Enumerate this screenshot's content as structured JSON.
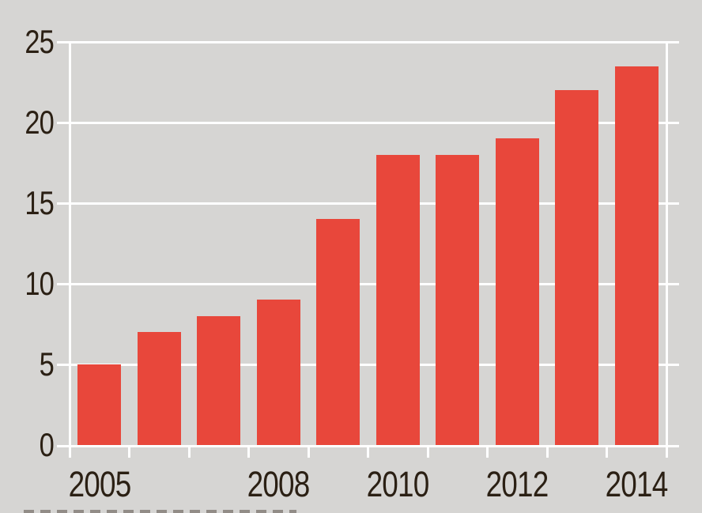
{
  "chart_data": {
    "type": "bar",
    "categories": [
      "2005",
      "2006",
      "2007",
      "2008",
      "2009",
      "2010",
      "2011",
      "2012",
      "2013",
      "2014"
    ],
    "values": [
      5,
      7,
      8,
      9,
      14,
      18,
      18,
      19,
      22,
      23.5
    ],
    "title": "",
    "xlabel": "",
    "ylabel": "",
    "ylim": [
      0,
      25
    ],
    "ytick_values": [
      0,
      5,
      10,
      15,
      20,
      25
    ],
    "ytick_labels": [
      "0",
      "5",
      "10",
      "15",
      "20",
      "25"
    ],
    "xticks": [
      {
        "label": "2005",
        "slot": 0
      },
      {
        "label": "2008",
        "slot": 3
      },
      {
        "label": "2010",
        "slot": 5
      },
      {
        "label": "2012",
        "slot": 7
      },
      {
        "label": "2014",
        "slot": 9
      }
    ],
    "grid": "horizontal",
    "legend": "none",
    "colors": {
      "bar": "#e8473b",
      "background": "#d6d5d3",
      "gridline": "#ffffff",
      "tick_label": "#2b2014"
    }
  }
}
